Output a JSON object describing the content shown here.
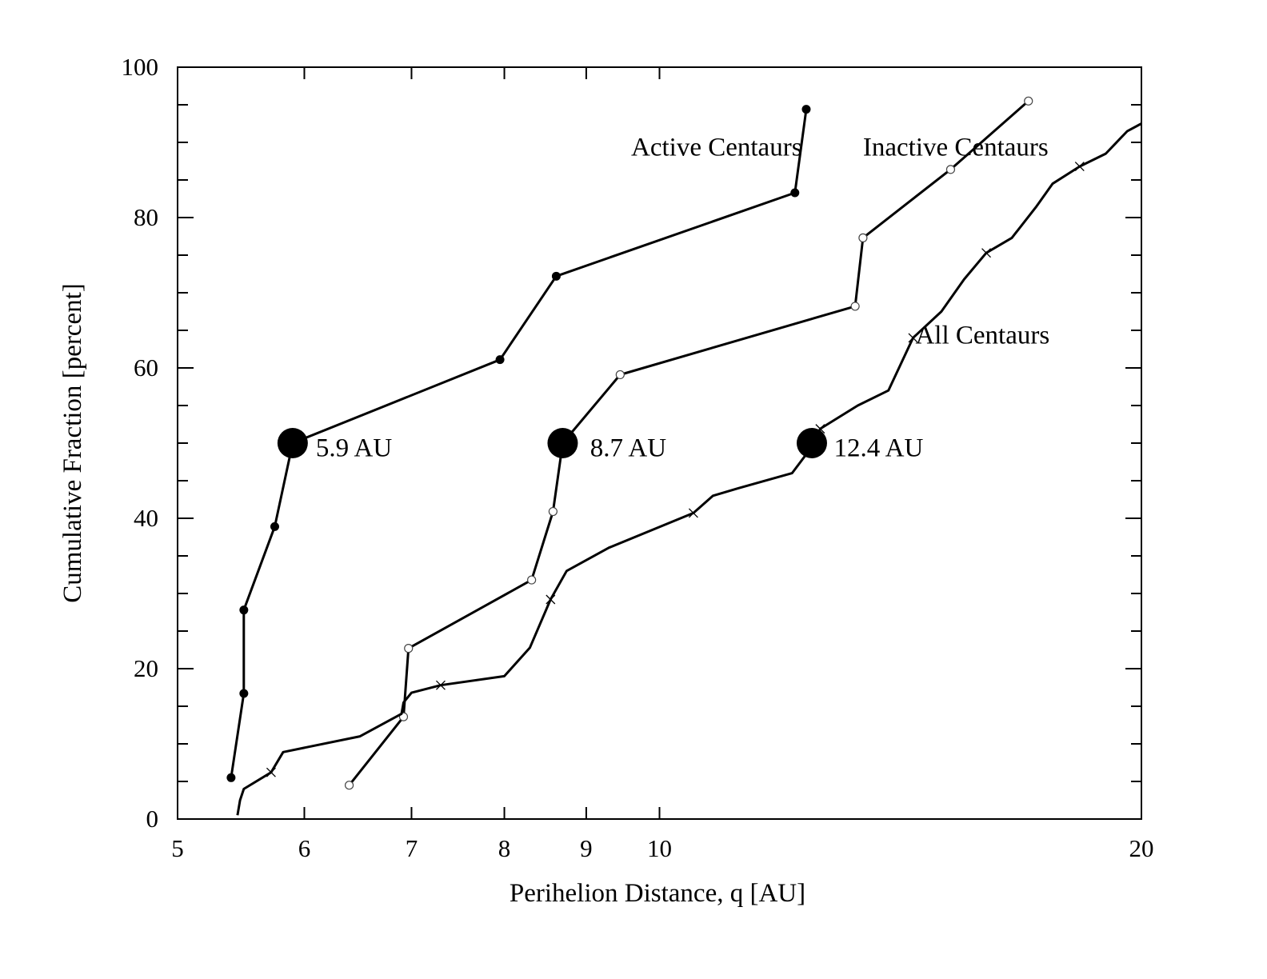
{
  "chart_data": {
    "type": "line",
    "xlabel": "Perihelion Distance, q [AU]",
    "ylabel": "Cumulative Fraction [percent]",
    "x_scale": "log",
    "xlim": [
      5,
      20
    ],
    "ylim": [
      0,
      100
    ],
    "x_ticks": [
      5,
      6,
      7,
      8,
      9,
      10,
      20
    ],
    "y_ticks": [
      0,
      20,
      40,
      60,
      80,
      100
    ],
    "grid": false,
    "legend": "none",
    "series": [
      {
        "name": "Active Centaurs",
        "marker": "filled-circle",
        "x": [
          5.4,
          5.5,
          5.5,
          5.75,
          5.9,
          7.95,
          8.62,
          12.15,
          12.35
        ],
        "y": [
          5.5,
          16.7,
          27.8,
          38.9,
          50,
          61.1,
          72.2,
          83.3,
          94.4
        ]
      },
      {
        "name": "Inactive Centaurs",
        "marker": "open-circle",
        "x": [
          6.4,
          6.92,
          6.97,
          8.32,
          8.58,
          8.7,
          9.45,
          13.25,
          13.4,
          15.2,
          17.0
        ],
        "y": [
          4.5,
          13.6,
          22.7,
          31.8,
          40.9,
          50,
          59.1,
          68.2,
          77.3,
          86.4,
          95.5
        ],
        "labeled": [
          true,
          true,
          true,
          true,
          true,
          false,
          true,
          true,
          true,
          true,
          true
        ]
      },
      {
        "name": "All Centaurs",
        "marker": "cross",
        "x": [
          5.45,
          5.47,
          5.5,
          5.72,
          5.82,
          6.5,
          6.9,
          6.92,
          7.0,
          7.3,
          8.0,
          8.3,
          8.55,
          8.75,
          9.3,
          10.5,
          10.8,
          11.2,
          12.1,
          12.5,
          12.6,
          13.3,
          13.9,
          14.4,
          15.0,
          15.5,
          16.0,
          16.6,
          17.2,
          17.6,
          18.3,
          19.0,
          19.6,
          20.0
        ],
        "y": [
          0.5,
          2.5,
          4.0,
          6.2,
          8.9,
          11,
          14,
          15.5,
          16.8,
          17.8,
          19,
          22.8,
          29.2,
          33,
          36.1,
          40.7,
          43,
          44,
          46,
          50,
          51.9,
          55,
          57,
          64,
          67.5,
          71.8,
          75.3,
          77.3,
          81.5,
          84.5,
          86.8,
          88.5,
          91.5,
          92.5
        ],
        "labeled": [
          false,
          false,
          false,
          true,
          false,
          false,
          false,
          false,
          false,
          true,
          false,
          false,
          true,
          false,
          false,
          true,
          false,
          false,
          false,
          false,
          true,
          false,
          false,
          true,
          false,
          false,
          true,
          false,
          false,
          false,
          true,
          false,
          false,
          false
        ]
      }
    ],
    "annotations": [
      {
        "text": "Active Centaurs",
        "x": 9.6,
        "y": 89.5
      },
      {
        "text": "Inactive Centaurs",
        "x": 13.4,
        "y": 89.5
      },
      {
        "text": "All Centaurs",
        "x": 14.45,
        "y": 64.5
      },
      {
        "text": "5.9 AU",
        "x": 6.1,
        "y": 49.5,
        "marker_x": 5.9,
        "marker_y": 50
      },
      {
        "text": "8.7 AU",
        "x": 9.05,
        "y": 49.5,
        "marker_x": 8.7,
        "marker_y": 50
      },
      {
        "text": "12.4 AU",
        "x": 12.85,
        "y": 49.5,
        "marker_x": 12.45,
        "marker_y": 50
      }
    ]
  }
}
